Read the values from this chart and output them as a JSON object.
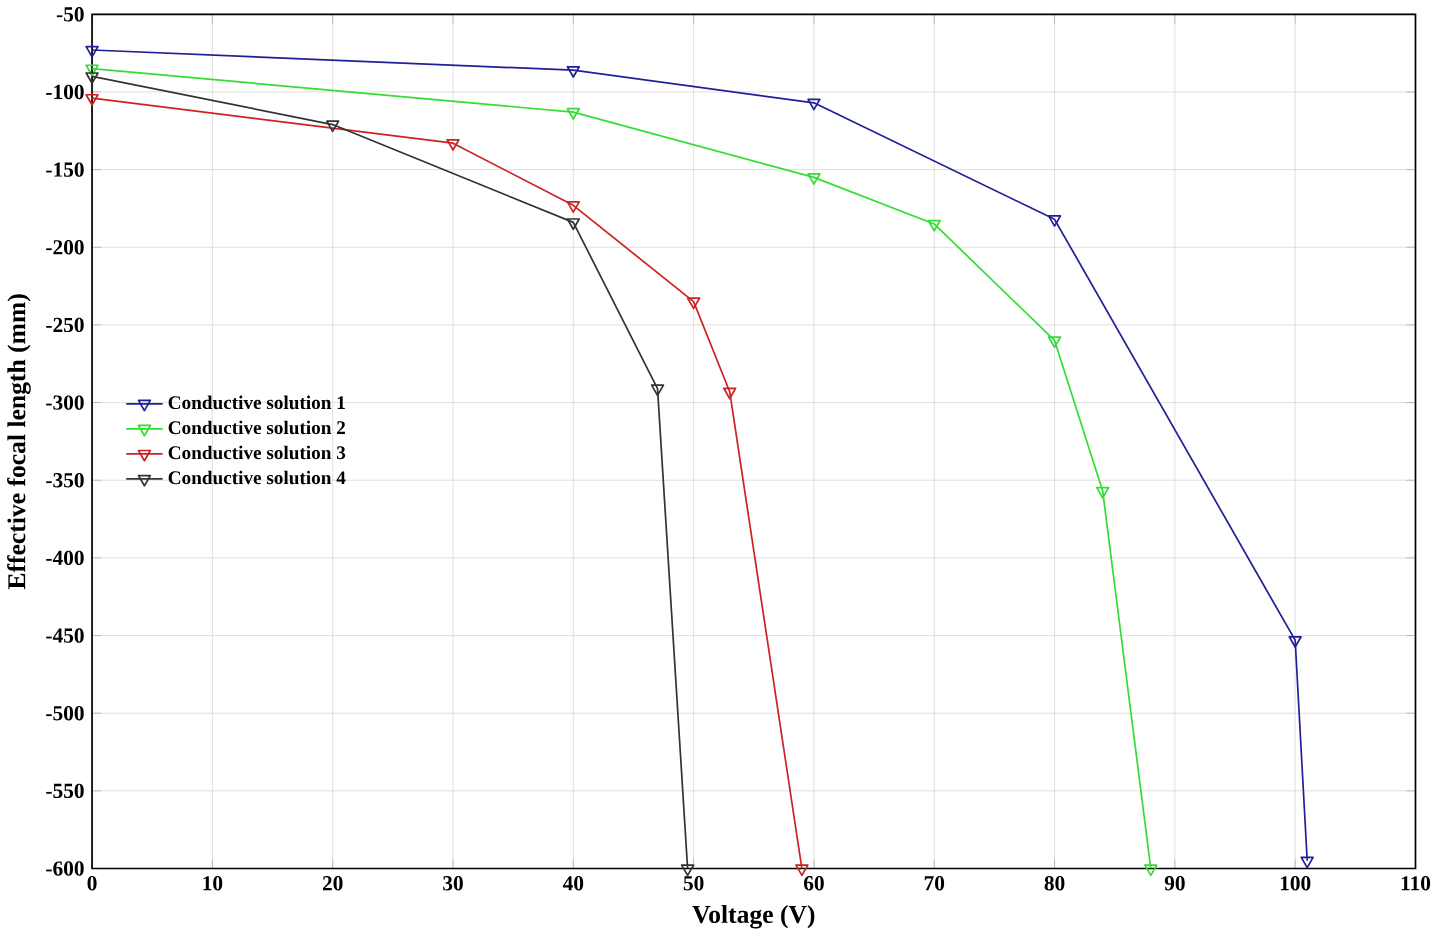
{
  "chart_data": {
    "type": "line",
    "xlabel": "Voltage (V)",
    "ylabel": "Effective focal length (mm)",
    "xlim": [
      0,
      110
    ],
    "xticks": [
      0,
      10,
      20,
      30,
      40,
      50,
      60,
      70,
      80,
      90,
      100,
      110
    ],
    "ylim": [
      -600,
      -50
    ],
    "yticks": [
      -600,
      -550,
      -500,
      -450,
      -400,
      -350,
      -300,
      -250,
      -200,
      -150,
      -100,
      -50
    ],
    "grid": true,
    "legend": "left",
    "marker": "triangle",
    "line_style": "solid",
    "series": [
      {
        "name": "Conductive solution 1",
        "color": "#1f1f9a",
        "x": [
          0,
          40,
          60,
          80,
          100,
          101
        ],
        "values": [
          -73,
          -86,
          -107,
          -182,
          -453,
          -595
        ]
      },
      {
        "name": "Conductive solution 2",
        "color": "#33dd33",
        "x": [
          0,
          40,
          60,
          70,
          80,
          84,
          88
        ],
        "values": [
          -85,
          -113,
          -155,
          -185,
          -260,
          -357,
          -600
        ]
      },
      {
        "name": "Conductive solution 3",
        "color": "#cc2222",
        "x": [
          0,
          30,
          40,
          50,
          53,
          59
        ],
        "values": [
          -104,
          -133,
          -173,
          -235,
          -293,
          -600
        ]
      },
      {
        "name": "Conductive solution 4",
        "color": "#333333",
        "x": [
          0,
          20,
          40,
          47,
          49.5
        ],
        "values": [
          -90,
          -121,
          -184,
          -291,
          -600
        ]
      }
    ]
  }
}
